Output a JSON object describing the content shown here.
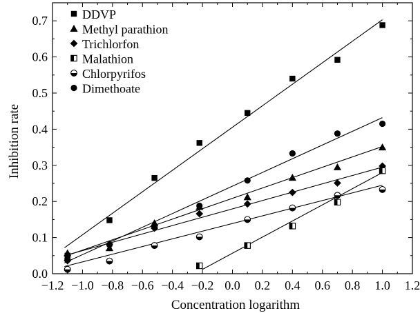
{
  "chart_data": {
    "type": "scatter",
    "title": "",
    "xlabel": "Concentration logarithm",
    "ylabel": "Inhibition rate",
    "xlim": [
      -1.2,
      1.2
    ],
    "ylim": [
      0.0,
      0.75
    ],
    "xticks": [
      -1.2,
      -1.0,
      -0.8,
      -0.6,
      -0.4,
      -0.2,
      0.0,
      0.2,
      0.4,
      0.6,
      0.8,
      1.0,
      1.2
    ],
    "xtick_labels": [
      "−1.2",
      "−1.0",
      "−0.8",
      "−0.6",
      "−0.4",
      "−0.2",
      "0.0",
      "0.2",
      "0.4",
      "0.6",
      "0.8",
      "1.0",
      "1.2"
    ],
    "yticks": [
      0.0,
      0.1,
      0.2,
      0.3,
      0.4,
      0.5,
      0.6,
      0.7
    ],
    "ytick_labels": [
      "0.0",
      "0.1",
      "0.2",
      "0.3",
      "0.4",
      "0.5",
      "0.6",
      "0.7"
    ],
    "grid": false,
    "legend_position": "top-left",
    "series": [
      {
        "name": "DDVP",
        "marker": "square",
        "x": [
          -1.1,
          -0.82,
          -0.52,
          -0.22,
          0.1,
          0.4,
          0.7,
          1.0
        ],
        "y": [
          0.05,
          0.148,
          0.265,
          0.362,
          0.445,
          0.54,
          0.592,
          0.688
        ],
        "fit": [
          [
            -1.12,
            0.072
          ],
          [
            1.0,
            0.703
          ]
        ]
      },
      {
        "name": "Methyl parathion",
        "marker": "triangle",
        "x": [
          -1.1,
          -0.82,
          -0.52,
          -0.22,
          0.1,
          0.4,
          0.7,
          1.0
        ],
        "y": [
          0.057,
          0.071,
          0.14,
          0.185,
          0.212,
          0.266,
          0.295,
          0.35
        ],
        "fit": [
          [
            -1.12,
            0.048
          ],
          [
            1.0,
            0.352
          ]
        ]
      },
      {
        "name": "Trichlorfon",
        "marker": "diamond",
        "x": [
          -1.1,
          -0.82,
          -0.52,
          -0.22,
          0.1,
          0.4,
          0.7,
          1.0
        ],
        "y": [
          0.036,
          0.082,
          0.126,
          0.166,
          0.193,
          0.225,
          0.251,
          0.298
        ],
        "fit": [
          [
            -1.12,
            0.05
          ],
          [
            1.0,
            0.295
          ]
        ]
      },
      {
        "name": "Malathion",
        "marker": "half-square",
        "x": [
          -0.22,
          0.1,
          0.4,
          0.7,
          1.0
        ],
        "y": [
          0.022,
          0.078,
          0.132,
          0.198,
          0.285
        ],
        "fit": [
          [
            -0.2,
            0.012
          ],
          [
            1.0,
            0.28
          ]
        ]
      },
      {
        "name": "Chlorpyrifos",
        "marker": "half-circle",
        "x": [
          -1.1,
          -0.82,
          -0.52,
          -0.22,
          0.1,
          0.4,
          0.7,
          1.0
        ],
        "y": [
          0.012,
          0.035,
          0.078,
          0.102,
          0.15,
          0.182,
          0.217,
          0.233
        ],
        "fit": [
          [
            -1.12,
            0.02
          ],
          [
            1.0,
            0.245
          ]
        ]
      },
      {
        "name": "Dimethoate",
        "marker": "circle",
        "x": [
          -1.1,
          -0.82,
          -0.52,
          -0.22,
          0.1,
          0.4,
          0.7,
          1.0
        ],
        "y": [
          0.04,
          0.08,
          0.13,
          0.188,
          0.258,
          0.333,
          0.388,
          0.415
        ],
        "fit": [
          [
            -1.12,
            0.03
          ],
          [
            1.0,
            0.432
          ]
        ]
      }
    ]
  }
}
